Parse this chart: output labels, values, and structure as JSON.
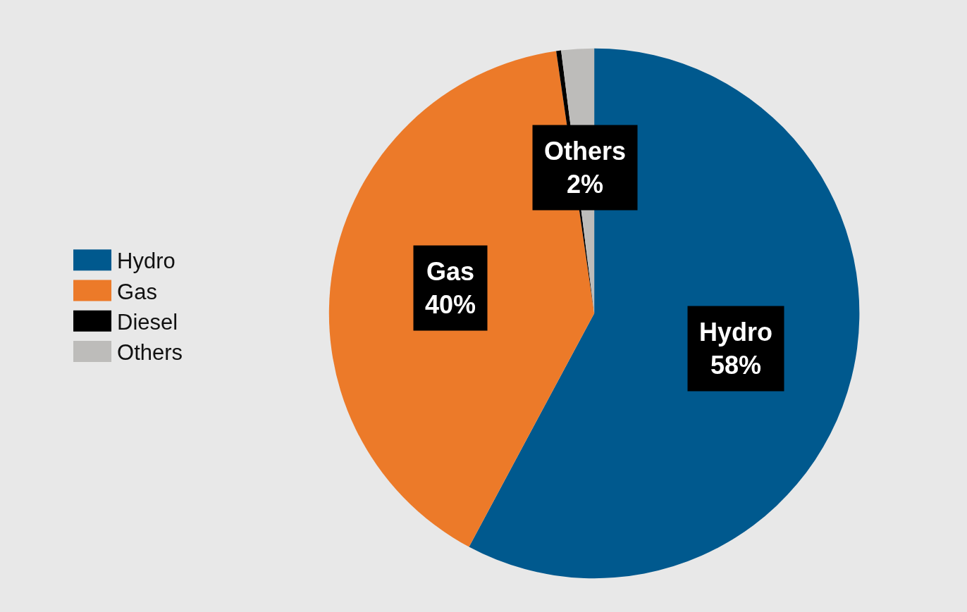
{
  "chart_data": {
    "type": "pie",
    "categories": [
      "Hydro",
      "Gas",
      "Diesel",
      "Others"
    ],
    "values": [
      58,
      40,
      0.3,
      2
    ],
    "colors": [
      "#00598e",
      "#ec7a29",
      "#000000",
      "#bdbcba"
    ],
    "value_labels": [
      "58%",
      "40%",
      null,
      "2%"
    ],
    "legend": "left"
  }
}
